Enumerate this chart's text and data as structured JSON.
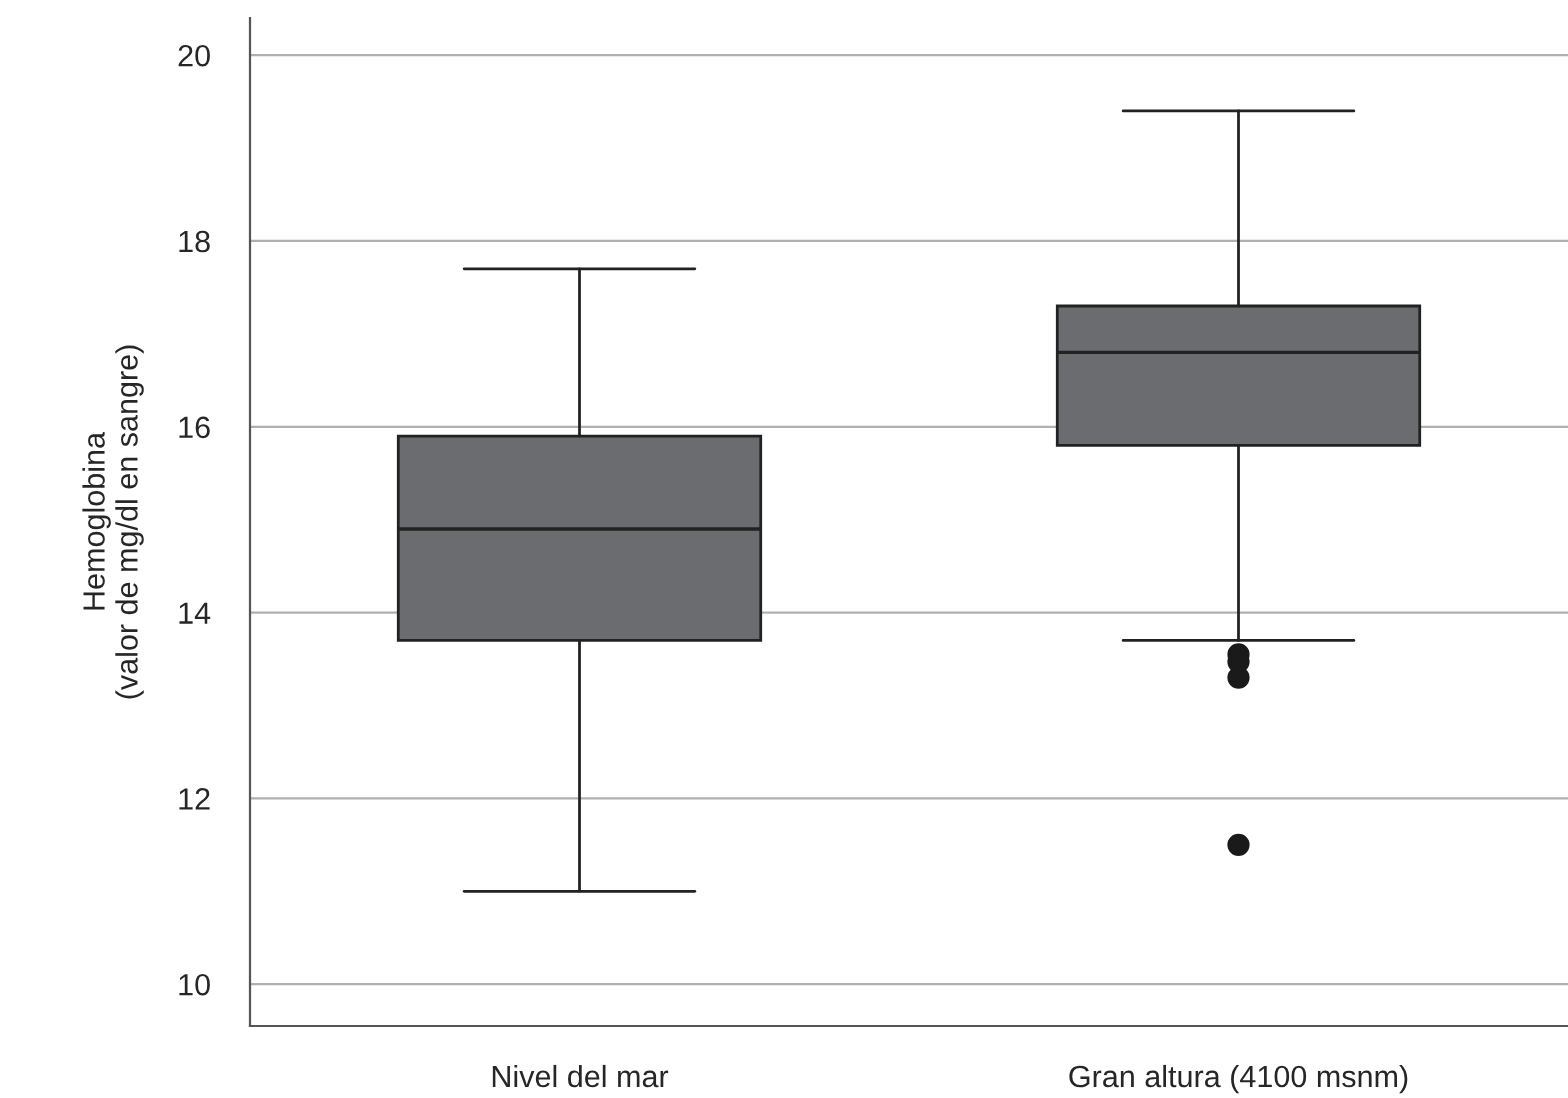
{
  "chart_data": {
    "type": "box",
    "ylabel": "Hemoglobina\n(valor de mg/dl en sangre)",
    "categories": [
      "Nivel del mar",
      "Gran altura (4100 msnm)"
    ],
    "boxes": [
      {
        "low": 11.0,
        "q1": 13.7,
        "median": 14.9,
        "q3": 15.9,
        "high": 17.7
      },
      {
        "low": 13.7,
        "q1": 15.8,
        "median": 16.8,
        "q3": 17.3,
        "high": 19.4,
        "outliers": [
          13.55,
          13.47,
          13.3,
          11.5
        ]
      }
    ],
    "color": "#6b6c70",
    "ylim": [
      9.55,
      20.4
    ],
    "yticks": [
      10,
      12,
      14,
      16,
      18,
      20
    ],
    "grid": "y"
  }
}
